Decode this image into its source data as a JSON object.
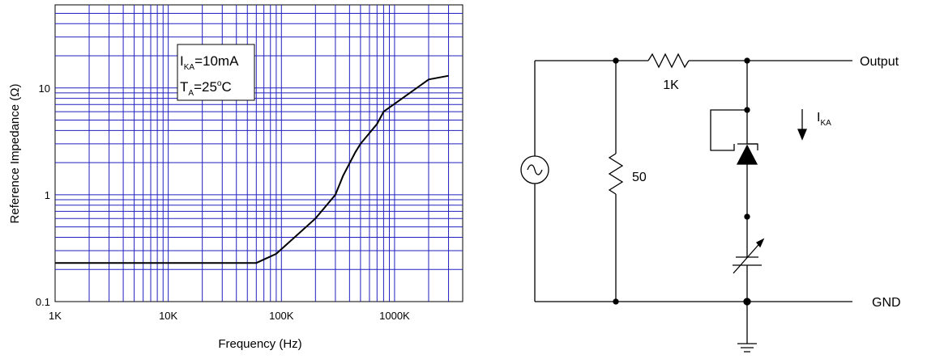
{
  "chart_data": {
    "type": "line",
    "xlabel": "Frequency (Hz)",
    "ylabel": "Reference Impedance (Ω)",
    "x_scale": "log",
    "y_scale": "log",
    "xlim": [
      1000,
      4000000
    ],
    "ylim": [
      0.1,
      60
    ],
    "grid": true,
    "x_ticks": [
      {
        "value": 1000,
        "label": "1K"
      },
      {
        "value": 10000,
        "label": "10K"
      },
      {
        "value": 100000,
        "label": "100K"
      },
      {
        "value": 1000000,
        "label": "1000K"
      }
    ],
    "y_ticks": [
      {
        "value": 0.1,
        "label": "0.1"
      },
      {
        "value": 1,
        "label": "1"
      },
      {
        "value": 10,
        "label": "10"
      }
    ],
    "annotation": {
      "line1_main": "I",
      "line1_sub": "KA",
      "line1_rest": "=10mA",
      "line2_main": "T",
      "line2_sub": "A",
      "line2_mid": "=25",
      "line2_sup": "o",
      "line2_rest": "C"
    },
    "series": [
      {
        "x": [
          1000,
          10000,
          60000,
          90000,
          200000,
          300000,
          350000,
          450000,
          500000,
          700000,
          800000,
          2000000,
          3000000
        ],
        "y": [
          0.23,
          0.23,
          0.23,
          0.28,
          0.6,
          1.0,
          1.5,
          2.5,
          3.0,
          4.6,
          6.0,
          12.0,
          13.0
        ],
        "color": "#000000"
      }
    ]
  },
  "circuit": {
    "labels": {
      "resistor_series": "1K",
      "resistor_shunt": "50",
      "output": "Output",
      "ground": "GND",
      "current_main": "I",
      "current_sub": "KA"
    }
  },
  "colors": {
    "grid": "#2020c0",
    "curve": "#000000"
  }
}
